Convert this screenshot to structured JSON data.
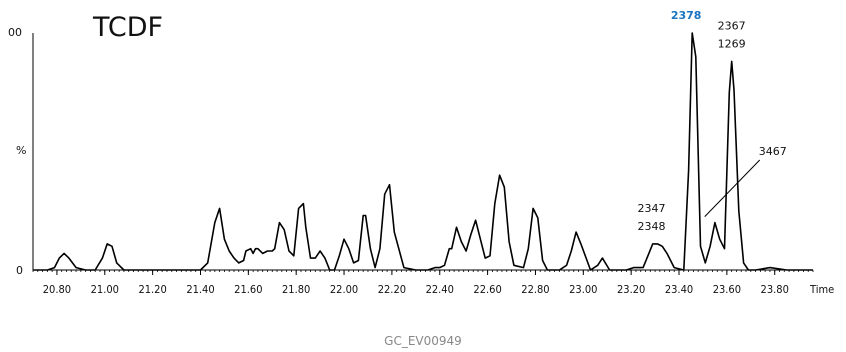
{
  "colors": {
    "trace": "#000000",
    "highlight": "#1a73c0",
    "footer": "#888888"
  },
  "chart_data": {
    "type": "line",
    "title": "TCDF",
    "xlabel": "Time",
    "ylabel_mid": "%",
    "y_tick_labels": [
      "00",
      "0"
    ],
    "xlim": [
      20.7,
      23.96
    ],
    "ylim": [
      0,
      100
    ],
    "x_ticks": [
      "20.80",
      "21.00",
      "21.20",
      "21.40",
      "21.60",
      "21.80",
      "22.00",
      "22.20",
      "22.40",
      "22.60",
      "22.80",
      "23.00",
      "23.20",
      "23.40",
      "23.60",
      "23.80"
    ],
    "annotations": [
      {
        "lines": [
          "2378"
        ],
        "x": 23.455,
        "y": 100,
        "highlight": true
      },
      {
        "lines": [
          "2367",
          "1269"
        ],
        "x": 23.62,
        "y": 88
      },
      {
        "lines": [
          "3467"
        ],
        "x": 23.52,
        "y": 20,
        "arrow": true
      },
      {
        "lines": [
          "2347",
          "2348"
        ],
        "x": 23.285,
        "y": 11
      }
    ],
    "series": [
      {
        "x": [
          20.7,
          20.76,
          20.79,
          20.81,
          20.83,
          20.85,
          20.88,
          20.92,
          20.96,
          20.99,
          21.01,
          21.03,
          21.05,
          21.08,
          21.12,
          21.3,
          21.4,
          21.43,
          21.46,
          21.48,
          21.5,
          21.52,
          21.54,
          21.56,
          21.58,
          21.59,
          21.61,
          21.62,
          21.63,
          21.64,
          21.66,
          21.68,
          21.7,
          21.71,
          21.73,
          21.75,
          21.77,
          21.79,
          21.81,
          21.83,
          21.84,
          21.86,
          21.88,
          21.9,
          21.92,
          21.94,
          21.96,
          21.98,
          22.0,
          22.02,
          22.04,
          22.06,
          22.08,
          22.09,
          22.11,
          22.13,
          22.15,
          22.17,
          22.19,
          22.21,
          22.25,
          22.3,
          22.35,
          22.38,
          22.4,
          22.42,
          22.44,
          22.45,
          22.47,
          22.49,
          22.51,
          22.53,
          22.55,
          22.57,
          22.59,
          22.61,
          22.63,
          22.65,
          22.67,
          22.69,
          22.71,
          22.75,
          22.77,
          22.79,
          22.81,
          22.83,
          22.85,
          22.9,
          22.93,
          22.95,
          22.97,
          22.99,
          23.03,
          23.06,
          23.08,
          23.11,
          23.14,
          23.18,
          23.21,
          23.23,
          23.25,
          23.27,
          23.29,
          23.31,
          23.33,
          23.35,
          23.38,
          23.42,
          23.44,
          23.455,
          23.47,
          23.49,
          23.51,
          23.53,
          23.55,
          23.57,
          23.59,
          23.61,
          23.62,
          23.63,
          23.65,
          23.67,
          23.69,
          23.72,
          23.78,
          23.85,
          23.96
        ],
        "y": [
          0,
          0,
          1,
          5,
          7,
          5,
          1,
          0,
          0,
          5,
          11,
          10,
          3,
          0,
          0,
          0,
          0,
          3,
          20,
          26,
          13,
          8,
          5,
          3,
          4,
          8,
          9,
          7,
          9,
          9,
          7,
          8,
          8,
          9,
          20,
          17,
          8,
          6,
          26,
          28,
          18,
          5,
          5,
          8,
          5,
          0,
          0,
          6,
          13,
          9,
          3,
          4,
          23,
          23,
          9,
          1,
          9,
          32,
          36,
          16,
          1,
          0,
          0,
          1,
          1,
          2,
          9,
          9,
          18,
          12,
          8,
          15,
          21,
          13,
          5,
          6,
          28,
          40,
          35,
          12,
          2,
          1,
          9,
          26,
          22,
          4,
          0,
          0,
          2,
          8,
          16,
          11,
          0,
          2,
          5,
          0,
          0,
          0,
          1,
          1,
          1,
          6,
          11,
          11,
          10,
          7,
          1,
          0,
          42,
          100,
          90,
          10,
          3,
          10,
          20,
          13,
          9,
          75,
          88,
          76,
          25,
          3,
          0,
          0,
          1,
          0,
          0
        ]
      }
    ]
  },
  "footer_id": "GC_EV00949"
}
